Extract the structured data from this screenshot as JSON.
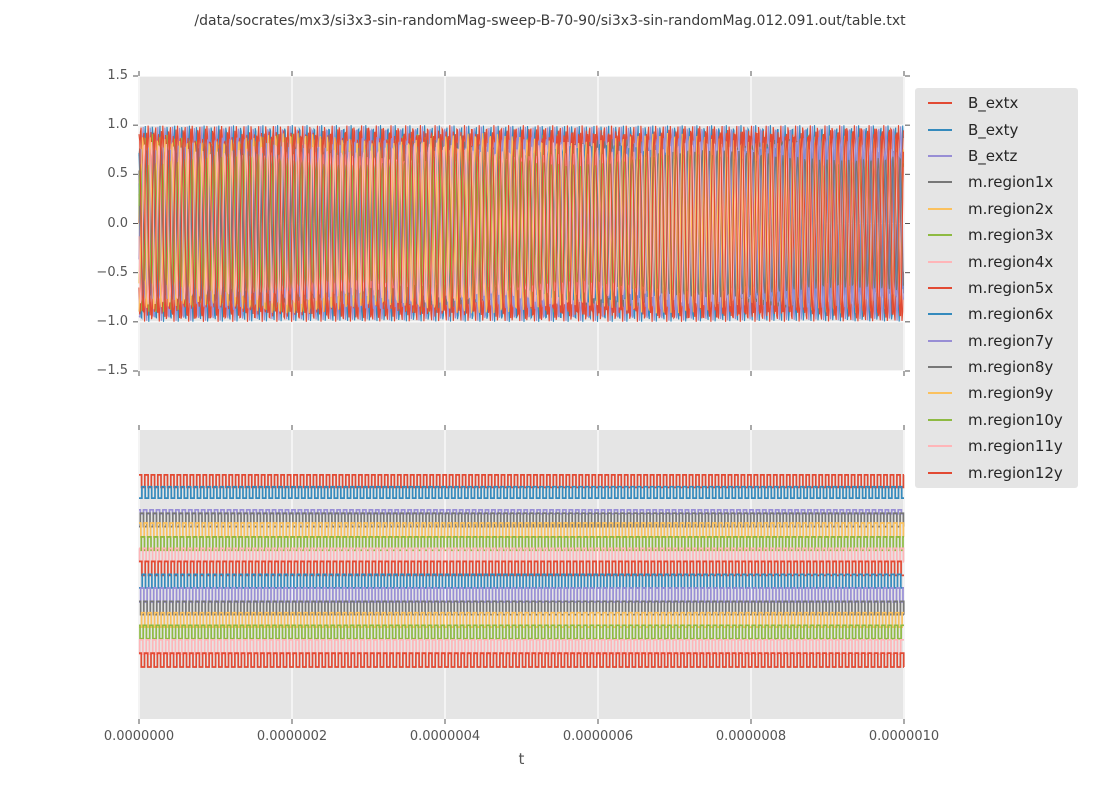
{
  "title": "/data/socrates/mx3/si3x3-sin-randomMag-sweep-B-70-90/si3x3-sin-randomMag.012.091.out/table.txt",
  "xlabel": "t",
  "style_colors": {
    "figure_bg": "#ffffff",
    "axes_bg": "#e5e5e5",
    "grid": "#ffffff",
    "tick_mark": "#555555",
    "tick_text": "#555555",
    "title_text": "#3c3c3c",
    "legend_bg": "#e5e5e5",
    "legend_text": "#262626"
  },
  "palette": {
    "red": "#e24a33",
    "blue": "#348abd",
    "purple": "#988ed5",
    "gray": "#777777",
    "orange": "#fbc15e",
    "green": "#8eba42",
    "pink": "#ffb5b8"
  },
  "legend": {
    "entries": [
      "B_extx",
      "B_exty",
      "B_extz",
      "m.region1x",
      "m.region2x",
      "m.region3x",
      "m.region4x",
      "m.region5x",
      "m.region6x",
      "m.region7y",
      "m.region8y",
      "m.region9y",
      "m.region10y",
      "m.region11y",
      "m.region12y"
    ]
  },
  "chart_data": [
    {
      "type": "line",
      "subplot": "top",
      "xlim": [
        0,
        1e-06
      ],
      "ylim": [
        -1.5,
        1.5
      ],
      "yticks": [
        "1.5",
        "1.0",
        "0.5",
        "0.0",
        "−0.5",
        "−1.0",
        "−1.5"
      ],
      "xticks_shown": false,
      "grid": true,
      "legend_position": "right outside",
      "description": "15 overlapping sinusoids, ~104 cycles across 0..1e-6 s, amplitudes ~0.7-1.0, envelope peaks at ±1.0",
      "series": [
        {
          "name": "B_extx",
          "color": "#e24a33",
          "kind": "sine",
          "amplitude": 1.0,
          "cycles": 104.0,
          "phase": 0.0,
          "mod_depth": 0.0,
          "mod_cycles": 0,
          "mod_phase": 0
        },
        {
          "name": "B_exty",
          "color": "#348abd",
          "kind": "sine",
          "amplitude": 1.0,
          "cycles": 104.0,
          "phase": 2.6,
          "mod_depth": 0.0,
          "mod_cycles": 0,
          "mod_phase": 0
        },
        {
          "name": "B_extz",
          "color": "#988ed5",
          "kind": "sine",
          "amplitude": 0.99,
          "cycles": 104.0,
          "phase": 4.4,
          "mod_depth": 0.0,
          "mod_cycles": 0,
          "mod_phase": 0
        },
        {
          "name": "m.region1x",
          "color": "#777777",
          "kind": "sine",
          "amplitude": 0.86,
          "cycles": 103.6,
          "phase": 1.1,
          "mod_depth": 0.12,
          "mod_cycles": 4.3,
          "mod_phase": 0.5
        },
        {
          "name": "m.region2x",
          "color": "#fbc15e",
          "kind": "sine",
          "amplitude": 0.78,
          "cycles": 104.5,
          "phase": 5.2,
          "mod_depth": 0.1,
          "mod_cycles": 3.1,
          "mod_phase": 2.2
        },
        {
          "name": "m.region3x",
          "color": "#8eba42",
          "kind": "sine",
          "amplitude": 0.91,
          "cycles": 103.8,
          "phase": 2.8,
          "mod_depth": 0.1,
          "mod_cycles": 5.7,
          "mod_phase": 4.0
        },
        {
          "name": "m.region4x",
          "color": "#ffb5b8",
          "kind": "sine",
          "amplitude": 0.73,
          "cycles": 104.3,
          "phase": 0.7,
          "mod_depth": 0.1,
          "mod_cycles": 2.6,
          "mod_phase": 1.3
        },
        {
          "name": "m.region5x",
          "color": "#e24a33",
          "kind": "sine",
          "amplitude": 0.95,
          "cycles": 103.7,
          "phase": 3.9,
          "mod_depth": 0.09,
          "mod_cycles": 4.9,
          "mod_phase": 5.1
        },
        {
          "name": "m.region6x",
          "color": "#348abd",
          "kind": "sine",
          "amplitude": 0.81,
          "cycles": 104.6,
          "phase": 1.8,
          "mod_depth": 0.12,
          "mod_cycles": 3.8,
          "mod_phase": 2.9
        },
        {
          "name": "m.region7y",
          "color": "#988ed5",
          "kind": "sine",
          "amplitude": 0.88,
          "cycles": 103.9,
          "phase": 5.8,
          "mod_depth": 0.11,
          "mod_cycles": 5.2,
          "mod_phase": 0.8
        },
        {
          "name": "m.region8y",
          "color": "#777777",
          "kind": "sine",
          "amplitude": 0.75,
          "cycles": 104.4,
          "phase": 2.3,
          "mod_depth": 0.1,
          "mod_cycles": 2.9,
          "mod_phase": 3.6
        },
        {
          "name": "m.region9y",
          "color": "#fbc15e",
          "kind": "sine",
          "amplitude": 0.92,
          "cycles": 103.5,
          "phase": 4.7,
          "mod_depth": 0.09,
          "mod_cycles": 4.1,
          "mod_phase": 5.8
        },
        {
          "name": "m.region10y",
          "color": "#8eba42",
          "kind": "sine",
          "amplitude": 0.71,
          "cycles": 104.2,
          "phase": 0.3,
          "mod_depth": 0.11,
          "mod_cycles": 3.4,
          "mod_phase": 1.9
        },
        {
          "name": "m.region11y",
          "color": "#ffb5b8",
          "kind": "sine",
          "amplitude": 0.83,
          "cycles": 104.7,
          "phase": 3.3,
          "mod_depth": 0.1,
          "mod_cycles": 5.5,
          "mod_phase": 4.4
        },
        {
          "name": "m.region12y",
          "color": "#e24a33",
          "kind": "sine",
          "amplitude": 0.97,
          "cycles": 104.0,
          "phase": 1.4,
          "mod_depth": 0.06,
          "mod_cycles": 4.6,
          "mod_phase": 2.5
        }
      ]
    },
    {
      "type": "line",
      "subplot": "bottom",
      "xlim": [
        0,
        1e-06
      ],
      "xticks": [
        "0.0000000",
        "0.0000002",
        "0.0000004",
        "0.0000006",
        "0.0000008",
        "0.0000010"
      ],
      "yticks": [],
      "grid": true,
      "xlabel": "t",
      "description": "15 square-wave traces at staggered vertical offsets, ~118 cycles across; B_extz nearly flat; center_frac is fraction from top of axes",
      "series": [
        {
          "name": "B_extx",
          "color": "#e24a33",
          "kind": "square",
          "center_frac": 0.177,
          "half_amp_frac": 0.0215,
          "cycles": 118.0,
          "phase_frac": 0.1
        },
        {
          "name": "B_exty",
          "color": "#348abd",
          "kind": "square",
          "center_frac": 0.216,
          "half_amp_frac": 0.0197,
          "cycles": 117.3,
          "phase_frac": 0.55
        },
        {
          "name": "B_extz",
          "color": "#988ed5",
          "kind": "square",
          "center_frac": 0.283,
          "half_amp_frac": 0.0069,
          "cycles": 118.6,
          "phase_frac": 0.3
        },
        {
          "name": "m.region1x",
          "color": "#777777",
          "kind": "square",
          "center_frac": 0.311,
          "half_amp_frac": 0.0232,
          "cycles": 117.8,
          "phase_frac": 0.8
        },
        {
          "name": "m.region2x",
          "color": "#fbc15e",
          "kind": "square",
          "center_frac": 0.346,
          "half_amp_frac": 0.0242,
          "cycles": 118.4,
          "phase_frac": 0.2
        },
        {
          "name": "m.region3x",
          "color": "#8eba42",
          "kind": "square",
          "center_frac": 0.393,
          "half_amp_frac": 0.0232,
          "cycles": 117.5,
          "phase_frac": 0.65
        },
        {
          "name": "m.region4x",
          "color": "#ffb5b8",
          "kind": "square",
          "center_frac": 0.433,
          "half_amp_frac": 0.0232,
          "cycles": 118.2,
          "phase_frac": 0.4
        },
        {
          "name": "m.region5x",
          "color": "#e24a33",
          "kind": "square",
          "center_frac": 0.479,
          "half_amp_frac": 0.0242,
          "cycles": 117.9,
          "phase_frac": 0.05
        },
        {
          "name": "m.region6x",
          "color": "#348abd",
          "kind": "square",
          "center_frac": 0.523,
          "half_amp_frac": 0.0232,
          "cycles": 118.5,
          "phase_frac": 0.5
        },
        {
          "name": "m.region7y",
          "color": "#988ed5",
          "kind": "square",
          "center_frac": 0.571,
          "half_amp_frac": 0.0242,
          "cycles": 117.4,
          "phase_frac": 0.75
        },
        {
          "name": "m.region8y",
          "color": "#777777",
          "kind": "square",
          "center_frac": 0.616,
          "half_amp_frac": 0.0232,
          "cycles": 118.3,
          "phase_frac": 0.25
        },
        {
          "name": "m.region9y",
          "color": "#fbc15e",
          "kind": "square",
          "center_frac": 0.657,
          "half_amp_frac": 0.0249,
          "cycles": 117.7,
          "phase_frac": 0.6
        },
        {
          "name": "m.region10y",
          "color": "#8eba42",
          "kind": "square",
          "center_frac": 0.699,
          "half_amp_frac": 0.0232,
          "cycles": 118.1,
          "phase_frac": 0.35
        },
        {
          "name": "m.region11y",
          "color": "#ffb5b8",
          "kind": "square",
          "center_frac": 0.751,
          "half_amp_frac": 0.0249,
          "cycles": 117.6,
          "phase_frac": 0.9
        },
        {
          "name": "m.region12y",
          "color": "#e24a33",
          "kind": "square",
          "center_frac": 0.796,
          "half_amp_frac": 0.0242,
          "cycles": 118.4,
          "phase_frac": 0.15
        }
      ]
    }
  ]
}
